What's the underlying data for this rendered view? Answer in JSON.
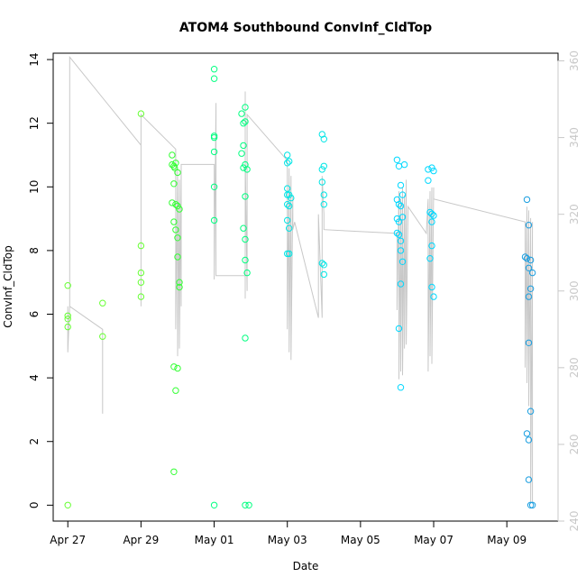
{
  "chart_data": {
    "type": "scatter",
    "title": "ATOM4 Southbound ConvInf_CldTop",
    "xlabel": "Date",
    "ylabel": "ConvInf_CldTop",
    "x_ticks": [
      "Apr 27",
      "Apr 29",
      "May 01",
      "May 03",
      "May 05",
      "May 07",
      "May 09"
    ],
    "y_ticks": [
      "0",
      "2",
      "4",
      "6",
      "8",
      "10",
      "12",
      "14"
    ],
    "y2_ticks": [
      "240",
      "260",
      "280",
      "300",
      "320",
      "340",
      "360"
    ],
    "xlim_days": [
      26.6,
      40.4
    ],
    "ylim": [
      -0.5,
      14.2
    ],
    "y2lim": [
      240,
      362
    ],
    "x_day_ref": "April 27 = day 27, May 01 = day 31",
    "colors": {
      "green": "#66ff33",
      "green2": "#33ff33",
      "spring": "#00ff80",
      "cyan": "#00e5e5",
      "cyan2": "#00d8ff",
      "blue": "#1a9ee0",
      "line": "#c8c8c8"
    },
    "series": [
      {
        "color": "green",
        "points": [
          [
            27.0,
            6.9
          ],
          [
            27.0,
            5.95
          ],
          [
            27.0,
            5.85
          ],
          [
            27.0,
            5.6
          ],
          [
            27.0,
            0.0
          ],
          [
            27.95,
            6.35
          ],
          [
            27.95,
            5.3
          ],
          [
            29.0,
            12.3
          ],
          [
            29.0,
            8.15
          ],
          [
            29.0,
            7.3
          ],
          [
            29.0,
            7.0
          ],
          [
            29.0,
            6.55
          ]
        ]
      },
      {
        "color": "green2",
        "points": [
          [
            29.85,
            11.0
          ],
          [
            29.85,
            10.7
          ],
          [
            29.9,
            10.65
          ],
          [
            29.92,
            10.6
          ],
          [
            29.95,
            10.75
          ],
          [
            30.0,
            10.45
          ],
          [
            29.85,
            9.5
          ],
          [
            29.9,
            10.1
          ],
          [
            29.95,
            9.45
          ],
          [
            30.0,
            9.4
          ],
          [
            30.05,
            9.3
          ],
          [
            29.9,
            8.9
          ],
          [
            29.95,
            8.65
          ],
          [
            30.0,
            8.4
          ],
          [
            30.0,
            7.8
          ],
          [
            30.05,
            7.0
          ],
          [
            30.05,
            6.85
          ],
          [
            29.9,
            4.35
          ],
          [
            30.0,
            4.3
          ],
          [
            29.95,
            3.6
          ],
          [
            29.9,
            1.05
          ]
        ]
      },
      {
        "color": "spring",
        "points": [
          [
            31.0,
            13.7
          ],
          [
            31.0,
            13.4
          ],
          [
            31.0,
            11.6
          ],
          [
            31.0,
            11.55
          ],
          [
            31.0,
            11.1
          ],
          [
            31.0,
            10.0
          ],
          [
            31.0,
            8.95
          ],
          [
            31.0,
            0.0
          ],
          [
            31.75,
            12.3
          ],
          [
            31.85,
            12.5
          ],
          [
            31.8,
            12.0
          ],
          [
            31.85,
            12.05
          ],
          [
            31.8,
            11.3
          ],
          [
            31.75,
            11.05
          ],
          [
            31.85,
            10.7
          ],
          [
            31.8,
            10.6
          ],
          [
            31.9,
            10.55
          ],
          [
            31.85,
            9.7
          ],
          [
            31.8,
            8.7
          ],
          [
            31.85,
            8.35
          ],
          [
            31.85,
            7.7
          ],
          [
            31.9,
            7.3
          ],
          [
            31.85,
            5.25
          ],
          [
            31.85,
            0.0
          ],
          [
            31.95,
            0.0
          ]
        ]
      },
      {
        "color": "cyan",
        "points": [
          [
            33.0,
            11.0
          ],
          [
            33.05,
            10.8
          ],
          [
            33.0,
            10.75
          ],
          [
            33.0,
            9.95
          ],
          [
            33.0,
            9.75
          ],
          [
            33.05,
            9.75
          ],
          [
            33.1,
            9.65
          ],
          [
            33.0,
            9.45
          ],
          [
            33.05,
            9.4
          ],
          [
            33.0,
            8.95
          ],
          [
            33.05,
            8.7
          ],
          [
            33.0,
            7.9
          ],
          [
            33.05,
            7.9
          ],
          [
            33.95,
            11.65
          ],
          [
            34.0,
            11.5
          ],
          [
            34.0,
            10.65
          ],
          [
            33.95,
            10.55
          ],
          [
            33.95,
            10.15
          ],
          [
            34.0,
            9.75
          ],
          [
            34.0,
            9.45
          ],
          [
            33.95,
            7.6
          ],
          [
            34.0,
            7.55
          ],
          [
            34.0,
            7.25
          ]
        ]
      },
      {
        "color": "cyan2",
        "points": [
          [
            36.0,
            10.85
          ],
          [
            36.05,
            10.65
          ],
          [
            36.2,
            10.7
          ],
          [
            36.1,
            10.05
          ],
          [
            36.15,
            9.75
          ],
          [
            36.0,
            9.6
          ],
          [
            36.05,
            9.45
          ],
          [
            36.1,
            9.4
          ],
          [
            36.0,
            9.0
          ],
          [
            36.05,
            8.9
          ],
          [
            36.15,
            9.05
          ],
          [
            36.0,
            8.55
          ],
          [
            36.05,
            8.5
          ],
          [
            36.1,
            8.3
          ],
          [
            36.1,
            8.0
          ],
          [
            36.15,
            7.65
          ],
          [
            36.1,
            6.95
          ],
          [
            36.05,
            5.55
          ],
          [
            36.1,
            3.7
          ],
          [
            36.85,
            10.55
          ],
          [
            36.95,
            10.6
          ],
          [
            37.0,
            10.5
          ],
          [
            36.85,
            10.2
          ],
          [
            36.9,
            9.2
          ],
          [
            36.95,
            9.15
          ],
          [
            37.0,
            9.1
          ],
          [
            36.95,
            8.9
          ],
          [
            36.95,
            8.15
          ],
          [
            36.9,
            7.75
          ],
          [
            36.95,
            6.85
          ],
          [
            37.0,
            6.55
          ]
        ]
      },
      {
        "color": "blue",
        "points": [
          [
            39.55,
            9.6
          ],
          [
            39.6,
            8.8
          ],
          [
            39.5,
            7.8
          ],
          [
            39.55,
            7.75
          ],
          [
            39.65,
            7.7
          ],
          [
            39.6,
            7.45
          ],
          [
            39.7,
            7.3
          ],
          [
            39.65,
            6.8
          ],
          [
            39.6,
            6.55
          ],
          [
            39.6,
            5.1
          ],
          [
            39.65,
            2.95
          ],
          [
            39.55,
            2.25
          ],
          [
            39.6,
            2.05
          ],
          [
            39.6,
            0.8
          ],
          [
            39.65,
            0.0
          ],
          [
            39.7,
            0.0
          ]
        ]
      }
    ],
    "secondary_line": {
      "color": "line",
      "points": [
        [
          27.0,
          296
        ],
        [
          27.0,
          284
        ],
        [
          27.05,
          296
        ],
        [
          27.95,
          290
        ],
        [
          27.95,
          268
        ],
        [
          27.95,
          290
        ],
        [
          27.05,
          296
        ],
        [
          27.05,
          361
        ],
        [
          29.0,
          338
        ],
        [
          29.0,
          296
        ],
        [
          29.0,
          346
        ],
        [
          29.95,
          337
        ],
        [
          29.95,
          290
        ],
        [
          30.0,
          332
        ],
        [
          30.0,
          283
        ],
        [
          30.05,
          329
        ],
        [
          30.05,
          285
        ],
        [
          30.1,
          331
        ],
        [
          30.1,
          296
        ],
        [
          30.1,
          333
        ],
        [
          31.0,
          333
        ],
        [
          31.0,
          303
        ],
        [
          31.05,
          349
        ],
        [
          31.05,
          304
        ],
        [
          31.85,
          304
        ],
        [
          31.85,
          352
        ],
        [
          31.85,
          298
        ],
        [
          31.85,
          335
        ],
        [
          31.9,
          300
        ],
        [
          31.9,
          346
        ],
        [
          33.0,
          334
        ],
        [
          33.0,
          290
        ],
        [
          33.05,
          332
        ],
        [
          33.05,
          284
        ],
        [
          33.1,
          330
        ],
        [
          33.1,
          282
        ],
        [
          33.15,
          325
        ],
        [
          33.15,
          316
        ],
        [
          33.2,
          318
        ],
        [
          33.85,
          293
        ],
        [
          33.85,
          320
        ],
        [
          33.95,
          293
        ],
        [
          33.95,
          330
        ],
        [
          34.0,
          320
        ],
        [
          34.0,
          316
        ],
        [
          36.0,
          315
        ],
        [
          36.0,
          303
        ],
        [
          36.0,
          295
        ],
        [
          36.05,
          326
        ],
        [
          36.05,
          277
        ],
        [
          36.1,
          324
        ],
        [
          36.1,
          279
        ],
        [
          36.15,
          327
        ],
        [
          36.15,
          278
        ],
        [
          36.2,
          325
        ],
        [
          36.2,
          285
        ],
        [
          36.25,
          329
        ],
        [
          36.25,
          286
        ],
        [
          36.3,
          322
        ],
        [
          36.8,
          315
        ],
        [
          36.85,
          324
        ],
        [
          36.85,
          279
        ],
        [
          36.9,
          326
        ],
        [
          36.9,
          283
        ],
        [
          36.95,
          327
        ],
        [
          36.95,
          281
        ],
        [
          37.0,
          327
        ],
        [
          37.0,
          324
        ],
        [
          39.5,
          318
        ],
        [
          39.5,
          280
        ],
        [
          39.55,
          322
        ],
        [
          39.55,
          276
        ],
        [
          39.6,
          321
        ],
        [
          39.6,
          270
        ],
        [
          39.65,
          319
        ],
        [
          39.65,
          245
        ],
        [
          39.7,
          317
        ],
        [
          39.7,
          245
        ],
        [
          39.7,
          318
        ]
      ]
    }
  }
}
